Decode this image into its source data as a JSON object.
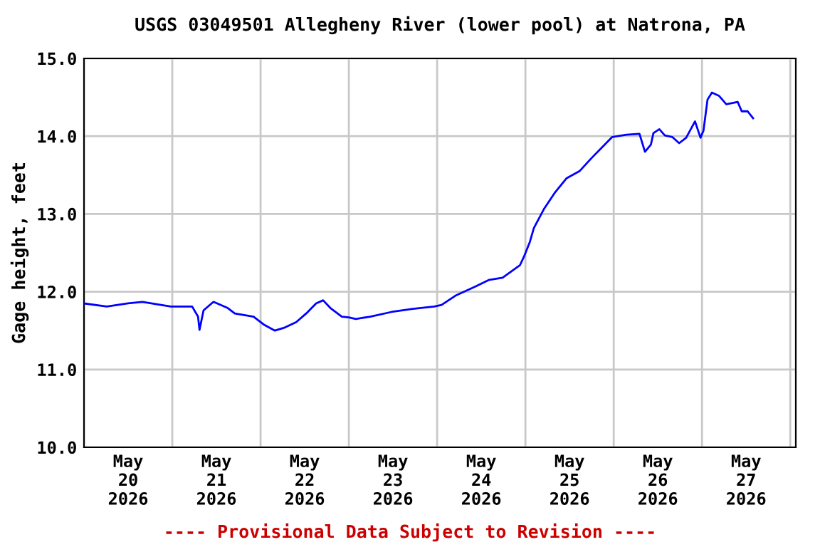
{
  "chart_data": {
    "type": "line",
    "title": "USGS 03049501 Allegheny River (lower pool) at Natrona, PA",
    "ylabel": "Gage height, feet",
    "annotations": [
      "---- Provisional Data Subject to Revision ----"
    ],
    "x": [
      "2026-05-20T00:00",
      "2026-05-20T06:12",
      "2026-05-20T12:00",
      "2026-05-20T15:54",
      "2026-05-20T23:36",
      "2026-05-21T05:24",
      "2026-05-21T07:00",
      "2026-05-21T07:24",
      "2026-05-21T08:30",
      "2026-05-21T11:12",
      "2026-05-21T15:06",
      "2026-05-21T17:00",
      "2026-05-21T22:06",
      "2026-05-22T00:48",
      "2026-05-22T03:54",
      "2026-05-22T06:36",
      "2026-05-22T09:42",
      "2026-05-22T12:24",
      "2026-05-22T15:06",
      "2026-05-22T17:00",
      "2026-05-22T19:00",
      "2026-05-22T22:06",
      "2026-05-23T00:00",
      "2026-05-23T01:54",
      "2026-05-23T05:48",
      "2026-05-23T11:36",
      "2026-05-23T17:24",
      "2026-05-23T23:12",
      "2026-05-24T01:12",
      "2026-05-24T05:00",
      "2026-05-24T10:06",
      "2026-05-24T14:00",
      "2026-05-24T17:48",
      "2026-05-24T22:30",
      "2026-05-24T23:36",
      "2026-05-25T01:12",
      "2026-05-25T02:18",
      "2026-05-25T05:00",
      "2026-05-25T08:06",
      "2026-05-25T11:12",
      "2026-05-25T14:42",
      "2026-05-25T17:48",
      "2026-05-25T20:54",
      "2026-05-25T23:36",
      "2026-05-26T03:30",
      "2026-05-26T07:00",
      "2026-05-26T08:30",
      "2026-05-26T10:06",
      "2026-05-26T10:48",
      "2026-05-26T12:24",
      "2026-05-26T13:54",
      "2026-05-26T15:54",
      "2026-05-26T17:48",
      "2026-05-26T19:42",
      "2026-05-26T22:06",
      "2026-05-26T23:36",
      "2026-05-27T00:24",
      "2026-05-27T01:30",
      "2026-05-27T02:42",
      "2026-05-27T04:36",
      "2026-05-27T06:36",
      "2026-05-27T09:42",
      "2026-05-27T10:48",
      "2026-05-27T12:24",
      "2026-05-27T13:54"
    ],
    "series": [
      {
        "color": "#0000ff",
        "values": [
          11.85,
          11.81,
          11.85,
          11.87,
          11.81,
          11.81,
          11.68,
          11.51,
          11.76,
          11.87,
          11.79,
          11.72,
          11.68,
          11.58,
          11.5,
          11.54,
          11.61,
          11.72,
          11.85,
          11.89,
          11.79,
          11.68,
          11.67,
          11.65,
          11.68,
          11.74,
          11.78,
          11.81,
          11.83,
          11.95,
          12.06,
          12.15,
          12.18,
          12.34,
          12.45,
          12.64,
          12.82,
          13.06,
          13.28,
          13.46,
          13.55,
          13.71,
          13.86,
          13.99,
          14.02,
          14.03,
          13.8,
          13.89,
          14.04,
          14.09,
          14.01,
          13.99,
          13.91,
          13.98,
          14.19,
          13.98,
          14.07,
          14.47,
          14.56,
          14.52,
          14.41,
          14.44,
          14.32,
          14.32,
          14.23
        ]
      }
    ],
    "xlim": [
      "2026-05-20T00:00",
      "2026-05-28T01:30"
    ],
    "xticks": [
      {
        "value": "2026-05-20T00:00",
        "label": null
      },
      {
        "value": "2026-05-20T12:00",
        "label": "May\n20\n2026"
      },
      {
        "value": "2026-05-21T00:00",
        "label": null
      },
      {
        "value": "2026-05-21T12:00",
        "label": "May\n21\n2026"
      },
      {
        "value": "2026-05-22T00:00",
        "label": null
      },
      {
        "value": "2026-05-22T12:00",
        "label": "May\n22\n2026"
      },
      {
        "value": "2026-05-23T00:00",
        "label": null
      },
      {
        "value": "2026-05-23T12:00",
        "label": "May\n23\n2026"
      },
      {
        "value": "2026-05-24T00:00",
        "label": null
      },
      {
        "value": "2026-05-24T12:00",
        "label": "May\n24\n2026"
      },
      {
        "value": "2026-05-25T00:00",
        "label": null
      },
      {
        "value": "2026-05-25T12:00",
        "label": "May\n25\n2026"
      },
      {
        "value": "2026-05-26T00:00",
        "label": null
      },
      {
        "value": "2026-05-26T12:00",
        "label": "May\n26\n2026"
      },
      {
        "value": "2026-05-27T00:00",
        "label": null
      },
      {
        "value": "2026-05-27T12:00",
        "label": "May\n27\n2026"
      },
      {
        "value": "2026-05-28T00:00",
        "label": null
      }
    ],
    "ylim": [
      10,
      15
    ],
    "yticks": [
      {
        "value": 10,
        "label": "10.0"
      },
      {
        "value": 11,
        "label": "11.0"
      },
      {
        "value": 12,
        "label": "12.0"
      },
      {
        "value": 13,
        "label": "13.0"
      },
      {
        "value": 14,
        "label": "14.0"
      },
      {
        "value": 15,
        "label": "15.0"
      }
    ],
    "grid": true,
    "line_style": "solid"
  }
}
